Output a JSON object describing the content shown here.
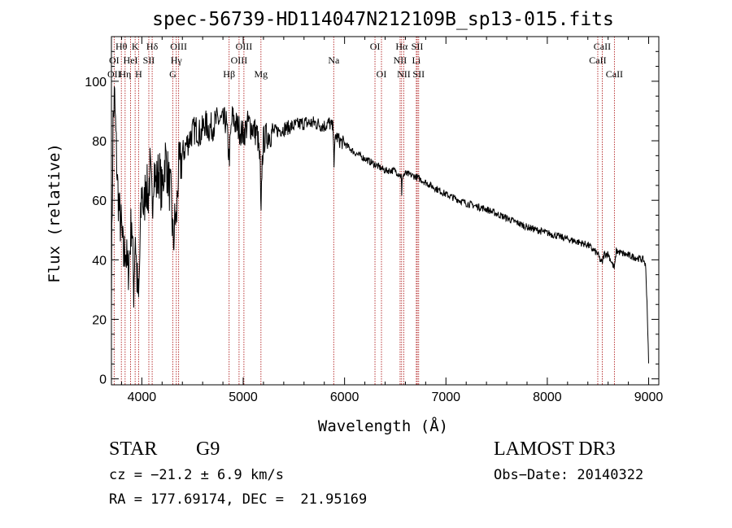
{
  "chart_data": {
    "type": "line",
    "title": "spec-56739-HD114047N212109B_sp13-015.fits",
    "xlabel": "Wavelength (Å)",
    "ylabel": "Flux (relative)",
    "xlim": [
      3700,
      9100
    ],
    "ylim": [
      -2,
      115
    ],
    "xticks": [
      4000,
      5000,
      6000,
      7000,
      8000,
      9000
    ],
    "xtick_labels": [
      "4000",
      "5000",
      "6000",
      "7000",
      "8000",
      "9000"
    ],
    "yticks": [
      0,
      20,
      40,
      60,
      80,
      100
    ],
    "ytick_labels": [
      "0",
      "20",
      "40",
      "60",
      "80",
      "100"
    ],
    "series": [
      {
        "name": "spectrum",
        "x": [
          3700,
          3715,
          3730,
          3745,
          3760,
          3780,
          3800,
          3820,
          3840,
          3860,
          3880,
          3900,
          3920,
          3935,
          3950,
          3968,
          3985,
          4000,
          4020,
          4040,
          4060,
          4080,
          4102,
          4120,
          4140,
          4170,
          4200,
          4230,
          4260,
          4290,
          4310,
          4330,
          4340,
          4360,
          4380,
          4400,
          4430,
          4460,
          4500,
          4540,
          4580,
          4620,
          4660,
          4700,
          4750,
          4800,
          4830,
          4861,
          4890,
          4920,
          4960,
          5000,
          5050,
          5100,
          5140,
          5167,
          5175,
          5183,
          5200,
          5240,
          5300,
          5400,
          5500,
          5600,
          5700,
          5800,
          5850,
          5890,
          5896,
          5910,
          5950,
          6000,
          6100,
          6200,
          6300,
          6400,
          6500,
          6560,
          6563,
          6570,
          6600,
          6700,
          6800,
          6900,
          7000,
          7200,
          7400,
          7600,
          7800,
          8000,
          8200,
          8400,
          8498,
          8520,
          8542,
          8560,
          8600,
          8662,
          8680,
          8750,
          8850,
          8950,
          8970,
          8985,
          9000
        ],
        "y": [
          30,
          85,
          95,
          80,
          65,
          55,
          50,
          40,
          45,
          35,
          42,
          55,
          30,
          50,
          35,
          25,
          48,
          65,
          55,
          68,
          60,
          70,
          58,
          72,
          65,
          70,
          62,
          75,
          68,
          60,
          45,
          55,
          52,
          70,
          72,
          75,
          78,
          80,
          83,
          84,
          82,
          86,
          84,
          85,
          87,
          86,
          87,
          74,
          88,
          86,
          84,
          82,
          86,
          84,
          82,
          72,
          50,
          70,
          80,
          82,
          83,
          84,
          85,
          86,
          86,
          85,
          86,
          84,
          72,
          82,
          80,
          79,
          76,
          74,
          72,
          70,
          70,
          68,
          60,
          68,
          69,
          68,
          66,
          64,
          62,
          59,
          57,
          54,
          51,
          49,
          47,
          45,
          42,
          40,
          39,
          42,
          42,
          37,
          43,
          42,
          41,
          40,
          38,
          25,
          5
        ]
      }
    ],
    "line_labels": [
      {
        "label": "Hθ",
        "wavelength": 3798,
        "row": 1
      },
      {
        "label": "OII",
        "wavelength": 3727,
        "row": 3
      },
      {
        "label": "OI",
        "wavelength": 3727,
        "row": 2
      },
      {
        "label": "Hη",
        "wavelength": 3835,
        "row": 3
      },
      {
        "label": "HeI",
        "wavelength": 3889,
        "row": 2
      },
      {
        "label": "K",
        "wavelength": 3934,
        "row": 1
      },
      {
        "label": "H",
        "wavelength": 3968,
        "row": 3
      },
      {
        "label": "SII",
        "wavelength": 4069,
        "row": 2
      },
      {
        "label": "Hδ",
        "wavelength": 4102,
        "row": 1
      },
      {
        "label": "OIII",
        "wavelength": 4363,
        "row": 1
      },
      {
        "label": "Hγ",
        "wavelength": 4340,
        "row": 2
      },
      {
        "label": "G",
        "wavelength": 4305,
        "row": 3
      },
      {
        "label": "Hβ",
        "wavelength": 4861,
        "row": 3
      },
      {
        "label": "OIII",
        "wavelength": 5007,
        "row": 1
      },
      {
        "label": "OIII",
        "wavelength": 4959,
        "row": 2
      },
      {
        "label": "Mg",
        "wavelength": 5175,
        "row": 3
      },
      {
        "label": "Na",
        "wavelength": 5893,
        "row": 2
      },
      {
        "label": "OI",
        "wavelength": 6300,
        "row": 1
      },
      {
        "label": "OI",
        "wavelength": 6364,
        "row": 3
      },
      {
        "label": "Hα",
        "wavelength": 6563,
        "row": 1
      },
      {
        "label": "NII",
        "wavelength": 6548,
        "row": 2
      },
      {
        "label": "NII",
        "wavelength": 6584,
        "row": 3
      },
      {
        "label": "SII",
        "wavelength": 6717,
        "row": 1
      },
      {
        "label": "Li",
        "wavelength": 6708,
        "row": 2
      },
      {
        "label": "SII",
        "wavelength": 6731,
        "row": 3
      },
      {
        "label": "CaII",
        "wavelength": 8542,
        "row": 1
      },
      {
        "label": "CaII",
        "wavelength": 8498,
        "row": 2
      },
      {
        "label": "CaII",
        "wavelength": 8662,
        "row": 3
      }
    ],
    "line_markers": [
      3727,
      3798,
      3835,
      3889,
      3934,
      3968,
      4069,
      4102,
      4305,
      4340,
      4363,
      4861,
      4959,
      5007,
      5175,
      5893,
      6300,
      6364,
      6548,
      6563,
      6584,
      6708,
      6717,
      6731,
      8498,
      8542,
      8662
    ]
  },
  "info": {
    "object_class": "STAR",
    "subclass": "G9",
    "survey": "LAMOST DR3",
    "cz": "cz = −21.2 ± 6.9 km/s",
    "obs_date": "Obs−Date: 20140322",
    "coords": "RA = 177.69174, DEC =  21.95169"
  },
  "colors": {
    "spectrum": "#000000",
    "line_marker": "#b22222",
    "axis": "#000000"
  }
}
